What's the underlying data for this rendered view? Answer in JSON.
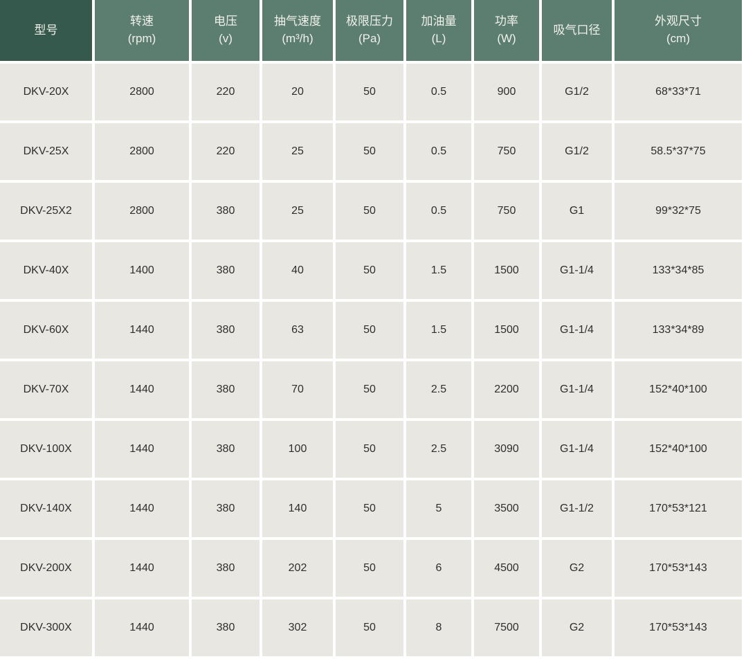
{
  "table": {
    "columns": [
      {
        "key": "model",
        "label": "型号",
        "unit": ""
      },
      {
        "key": "speed-rpm",
        "label": "转速",
        "unit": "(rpm)"
      },
      {
        "key": "voltage-v",
        "label": "电压",
        "unit": "(v)"
      },
      {
        "key": "pumping-speed-m3h",
        "label": "抽气速度",
        "unit": "(m³/h)"
      },
      {
        "key": "ultimate-pressure-pa",
        "label": "极限压力",
        "unit": "(Pa)"
      },
      {
        "key": "oil-amount-l",
        "label": "加油量",
        "unit": "(L)"
      },
      {
        "key": "power-w",
        "label": "功率",
        "unit": "(W)"
      },
      {
        "key": "inlet-port",
        "label": "吸气口径",
        "unit": ""
      },
      {
        "key": "dimensions-cm",
        "label": "外观尺寸",
        "unit": "(cm)"
      }
    ],
    "rows": [
      [
        "DKV-20X",
        "2800",
        "220",
        "20",
        "50",
        "0.5",
        "900",
        "G1/2",
        "68*33*71"
      ],
      [
        "DKV-25X",
        "2800",
        "220",
        "25",
        "50",
        "0.5",
        "750",
        "G1/2",
        "58.5*37*75"
      ],
      [
        "DKV-25X2",
        "2800",
        "380",
        "25",
        "50",
        "0.5",
        "750",
        "G1",
        "99*32*75"
      ],
      [
        "DKV-40X",
        "1400",
        "380",
        "40",
        "50",
        "1.5",
        "1500",
        "G1-1/4",
        "133*34*85"
      ],
      [
        "DKV-60X",
        "1440",
        "380",
        "63",
        "50",
        "1.5",
        "1500",
        "G1-1/4",
        "133*34*89"
      ],
      [
        "DKV-70X",
        "1440",
        "380",
        "70",
        "50",
        "2.5",
        "2200",
        "G1-1/4",
        "152*40*100"
      ],
      [
        "DKV-100X",
        "1440",
        "380",
        "100",
        "50",
        "2.5",
        "3090",
        "G1-1/4",
        "152*40*100"
      ],
      [
        "DKV-140X",
        "1440",
        "380",
        "140",
        "50",
        "5",
        "3500",
        "G1-1/2",
        "170*53*121"
      ],
      [
        "DKV-200X",
        "1440",
        "380",
        "202",
        "50",
        "6",
        "4500",
        "G2",
        "170*53*143"
      ],
      [
        "DKV-300X",
        "1440",
        "380",
        "302",
        "50",
        "8",
        "7500",
        "G2",
        "170*53*143"
      ]
    ],
    "colors": {
      "header_first_bg": "#35594c",
      "header_bg": "#5b7e70",
      "cell_bg": "#e9e7e2",
      "gap": "#ffffff",
      "header_text": "#f2f1ec",
      "cell_text": "#2e2e2e"
    }
  }
}
